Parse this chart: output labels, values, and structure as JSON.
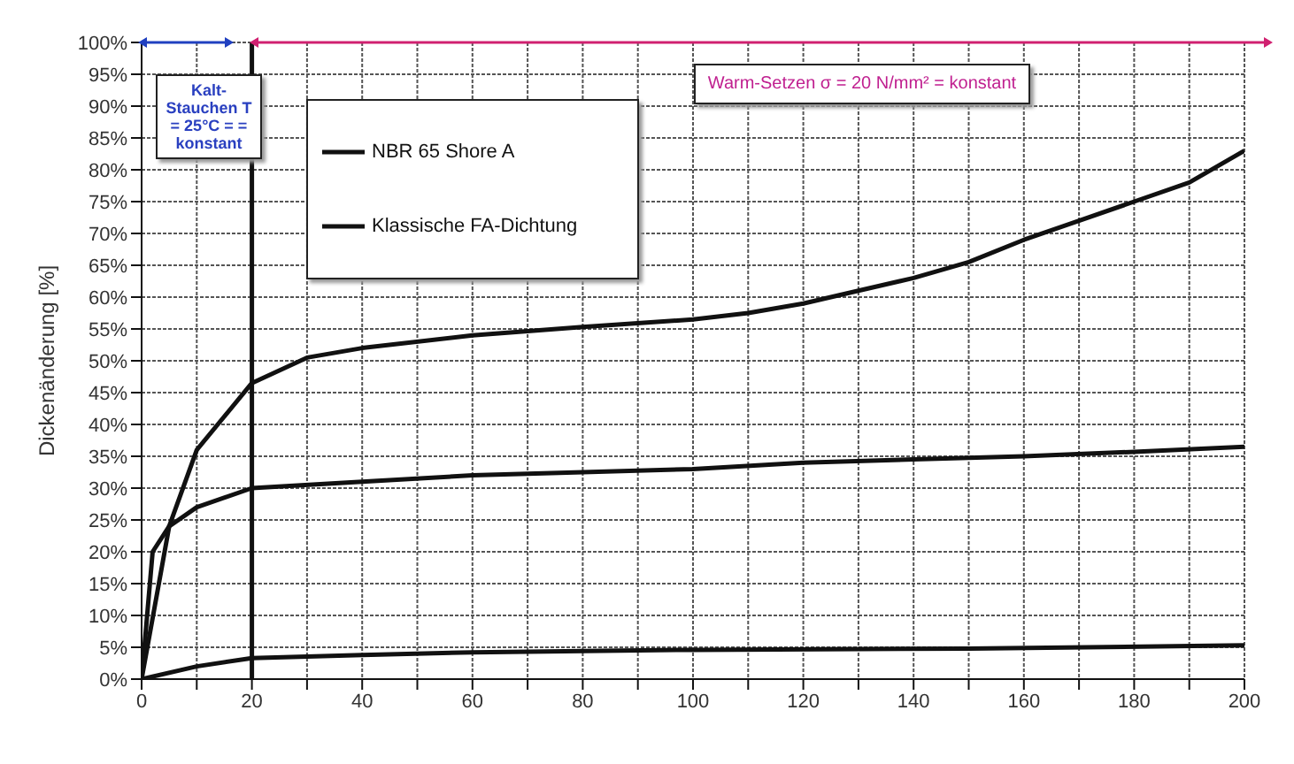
{
  "chart_data": {
    "type": "line",
    "ylabel": "Dickenänderung [%]",
    "xlim": [
      0,
      200
    ],
    "ylim": [
      0,
      100
    ],
    "xticks": [
      0,
      {
        "value": 10,
        "label": null
      },
      20,
      {
        "value": 30,
        "label": null
      },
      40,
      {
        "value": 50,
        "label": null
      },
      60,
      {
        "value": 70,
        "label": null
      },
      80,
      {
        "value": 90,
        "label": null
      },
      100,
      {
        "value": 110,
        "label": null
      },
      120,
      {
        "value": 130,
        "label": null
      },
      140,
      {
        "value": 150,
        "label": null
      },
      160,
      {
        "value": 170,
        "label": null
      },
      180,
      {
        "value": 190,
        "label": null
      },
      200
    ],
    "yticks": [
      {
        "value": 0,
        "label": "0%"
      },
      {
        "value": 5,
        "label": "5%"
      },
      {
        "value": 10,
        "label": "10%"
      },
      {
        "value": 15,
        "label": "15%"
      },
      {
        "value": 20,
        "label": "20%"
      },
      {
        "value": 25,
        "label": "25%"
      },
      {
        "value": 30,
        "label": "30%"
      },
      {
        "value": 35,
        "label": "35%"
      },
      {
        "value": 40,
        "label": "40%"
      },
      {
        "value": 45,
        "label": "45%"
      },
      {
        "value": 50,
        "label": "50%"
      },
      {
        "value": 55,
        "label": "55%"
      },
      {
        "value": 60,
        "label": "60%"
      },
      {
        "value": 65,
        "label": "65%"
      },
      {
        "value": 70,
        "label": "70%"
      },
      {
        "value": 75,
        "label": "75%"
      },
      {
        "value": 80,
        "label": "80%"
      },
      {
        "value": 85,
        "label": "85%"
      },
      {
        "value": 90,
        "label": "90%"
      },
      {
        "value": 95,
        "label": "95%"
      },
      {
        "value": 100,
        "label": "100%"
      }
    ],
    "grid": true,
    "legend": "top left",
    "marker": "none",
    "line_style": "solid",
    "series": [
      {
        "name": "NBR 65 Shore A",
        "color": "#111111",
        "x": [
          0,
          5,
          10,
          20,
          30,
          40,
          60,
          80,
          100,
          110,
          120,
          130,
          140,
          150,
          160,
          170,
          180,
          190,
          200
        ],
        "values": [
          0,
          24,
          36,
          46.5,
          50.5,
          52,
          54,
          55.3,
          56.5,
          57.5,
          59,
          61,
          63,
          65.5,
          69,
          72,
          75,
          78,
          83
        ]
      },
      {
        "color": "#111111",
        "x": [
          0,
          10,
          20,
          40,
          60,
          100,
          150,
          200
        ],
        "values": [
          0,
          2,
          3.3,
          3.8,
          4.2,
          4.6,
          4.8,
          5.3
        ]
      },
      {
        "name": "Klassische FA-Dichtung",
        "color": "#111111",
        "x": [
          0,
          2,
          5,
          10,
          20,
          40,
          60,
          80,
          100,
          120,
          140,
          160,
          180,
          200
        ],
        "values": [
          0,
          20,
          24,
          27,
          30,
          31,
          32,
          32.5,
          33,
          34,
          34.5,
          35,
          35.7,
          36.5
        ]
      }
    ],
    "ref_lines": [
      {
        "axis": "x",
        "value": 20,
        "color": "#111111"
      }
    ],
    "annotations": [
      "Kalt-Stauchen T = 25°C = = konstant",
      "Warm-Setzen σ = 20 N/mm² = konstant"
    ]
  }
}
